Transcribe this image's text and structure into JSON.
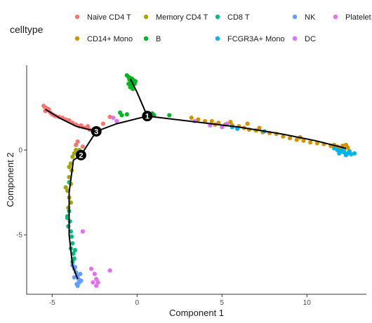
{
  "chart_data": {
    "type": "scatter",
    "xlabel": "Component 1",
    "ylabel": "Component 2",
    "xlim": [
      -6.5,
      13.5
    ],
    "ylim": [
      -8.5,
      5.0
    ],
    "x_ticks": [
      -5,
      0,
      5,
      10
    ],
    "y_ticks": [
      -5,
      0
    ],
    "grid": false,
    "legend": {
      "title": "celltype",
      "placement": "top",
      "entries": [
        {
          "label": "Naive CD4 T",
          "color": "#F8766D"
        },
        {
          "label": "Memory CD4 T",
          "color": "#A3A500"
        },
        {
          "label": "CD8 T",
          "color": "#00BF7D"
        },
        {
          "label": "NK",
          "color": "#619CFF"
        },
        {
          "label": "Platelet",
          "color": "#E76BF3"
        },
        {
          "label": "CD14+ Mono",
          "color": "#D39200"
        },
        {
          "label": "B",
          "color": "#00B81F"
        },
        {
          "label": "FCGR3A+ Mono",
          "color": "#00B4EF"
        },
        {
          "label": "DC",
          "color": "#DB72FB"
        }
      ]
    },
    "trajectory": [
      {
        "x": [
          -5.4,
          -4.5,
          -3.6,
          -3.0,
          -2.4
        ],
        "y": [
          2.4,
          1.85,
          1.4,
          1.25,
          1.1
        ]
      },
      {
        "x": [
          -2.4,
          -1.2,
          0.6
        ],
        "y": [
          1.1,
          1.55,
          2.0
        ]
      },
      {
        "x": [
          0.6,
          0.0,
          -0.4
        ],
        "y": [
          2.0,
          3.4,
          4.2
        ]
      },
      {
        "x": [
          0.6,
          3.5,
          6.0,
          8.5,
          10.5,
          12.3
        ],
        "y": [
          2.0,
          1.65,
          1.35,
          0.95,
          0.55,
          0.1
        ]
      },
      {
        "x": [
          -2.4,
          -3.3
        ],
        "y": [
          1.1,
          -0.3
        ]
      },
      {
        "x": [
          -3.3,
          -3.75,
          -4.0,
          -4.0,
          -3.8,
          -3.5
        ],
        "y": [
          -0.3,
          -0.6,
          -2.5,
          -5.0,
          -6.8,
          -7.6
        ]
      }
    ],
    "branch_points": [
      {
        "label": "1",
        "x": 0.6,
        "y": 2.0
      },
      {
        "label": "2",
        "x": -3.3,
        "y": -0.3
      },
      {
        "label": "3",
        "x": -2.4,
        "y": 1.1
      }
    ],
    "series": [
      {
        "name": "Naive CD4 T",
        "color": "#F8766D",
        "points": [
          [
            -5.5,
            2.6
          ],
          [
            -5.4,
            2.5
          ],
          [
            -5.3,
            2.45
          ],
          [
            -5.4,
            2.3
          ],
          [
            -5.2,
            2.4
          ],
          [
            -5.1,
            2.2
          ],
          [
            -5.0,
            2.1
          ],
          [
            -4.8,
            2.0
          ],
          [
            -4.6,
            1.95
          ],
          [
            -4.4,
            1.9
          ],
          [
            -4.2,
            1.8
          ],
          [
            -4.0,
            1.75
          ],
          [
            -3.8,
            1.6
          ],
          [
            -3.6,
            1.5
          ],
          [
            -3.4,
            1.4
          ],
          [
            -3.2,
            1.35
          ],
          [
            -3.0,
            1.3
          ],
          [
            -2.8,
            1.2
          ],
          [
            -2.6,
            1.1
          ],
          [
            -2.9,
            1.4
          ],
          [
            -3.3,
            1.45
          ],
          [
            -4.9,
            2.05
          ],
          [
            -5.25,
            2.35
          ],
          [
            -1.6,
            1.95
          ],
          [
            -2.0,
            1.55
          ],
          [
            -3.5,
            0.5
          ],
          [
            -3.6,
            0.3
          ],
          [
            -3.2,
            0.2
          ]
        ]
      },
      {
        "name": "Memory CD4 T",
        "color": "#A3A500",
        "points": [
          [
            -3.6,
            0.0
          ],
          [
            -3.5,
            -0.2
          ],
          [
            -3.8,
            -0.4
          ],
          [
            -3.9,
            -0.8
          ],
          [
            -3.85,
            -1.2
          ],
          [
            -4.0,
            -1.6
          ],
          [
            -3.9,
            -2.0
          ],
          [
            -4.1,
            -2.4
          ],
          [
            -4.0,
            -2.8
          ],
          [
            -3.9,
            -3.1
          ],
          [
            -4.2,
            -2.2
          ],
          [
            -4.0,
            -1.0
          ],
          [
            -3.7,
            -0.2
          ],
          [
            -3.4,
            0.0
          ],
          [
            -4.05,
            -3.4
          ]
        ]
      },
      {
        "name": "CD8 T",
        "color": "#00BF7D",
        "points": [
          [
            -4.0,
            -3.6
          ],
          [
            -4.1,
            -3.9
          ],
          [
            -3.95,
            -4.2
          ],
          [
            -4.05,
            -4.5
          ],
          [
            -3.9,
            -4.8
          ],
          [
            -3.85,
            -5.1
          ],
          [
            -3.8,
            -5.5
          ],
          [
            -3.9,
            -5.8
          ],
          [
            -3.75,
            -6.1
          ],
          [
            -3.7,
            -6.4
          ],
          [
            -3.8,
            -6.6
          ],
          [
            -3.65,
            -5.9
          ],
          [
            -4.1,
            -4.0
          ],
          [
            -4.0,
            -1.9
          ]
        ]
      },
      {
        "name": "NK",
        "color": "#619CFF",
        "points": [
          [
            -3.8,
            -6.8
          ],
          [
            -3.7,
            -7.0
          ],
          [
            -3.6,
            -7.2
          ],
          [
            -3.5,
            -7.4
          ],
          [
            -3.45,
            -7.6
          ],
          [
            -3.4,
            -7.8
          ],
          [
            -3.55,
            -7.9
          ],
          [
            -3.7,
            -7.5
          ],
          [
            -3.5,
            -8.0
          ],
          [
            -3.35,
            -7.3
          ],
          [
            -3.65,
            -6.9
          ],
          [
            -3.3,
            -7.7
          ]
        ]
      },
      {
        "name": "Platelet",
        "color": "#E76BF3",
        "points": [
          [
            -3.2,
            -4.8
          ],
          [
            -2.7,
            -7.0
          ],
          [
            -2.5,
            -7.3
          ],
          [
            -2.4,
            -7.6
          ],
          [
            -2.3,
            -7.8
          ],
          [
            -1.6,
            -7.1
          ],
          [
            -2.4,
            -8.0
          ],
          [
            -2.6,
            -7.8
          ]
        ]
      },
      {
        "name": "CD14+ Mono",
        "color": "#D39200",
        "points": [
          [
            3.6,
            1.8
          ],
          [
            4.0,
            1.7
          ],
          [
            4.4,
            1.7
          ],
          [
            4.8,
            1.6
          ],
          [
            5.2,
            1.5
          ],
          [
            5.6,
            1.45
          ],
          [
            6.0,
            1.4
          ],
          [
            6.3,
            1.3
          ],
          [
            6.6,
            1.2
          ],
          [
            7.0,
            1.15
          ],
          [
            7.4,
            1.05
          ],
          [
            7.8,
            1.0
          ],
          [
            8.2,
            0.95
          ],
          [
            8.6,
            0.8
          ],
          [
            9.0,
            0.7
          ],
          [
            9.4,
            0.6
          ],
          [
            9.8,
            0.55
          ],
          [
            10.2,
            0.45
          ],
          [
            10.6,
            0.4
          ],
          [
            11.0,
            0.35
          ],
          [
            11.4,
            0.25
          ],
          [
            11.8,
            0.2
          ],
          [
            12.0,
            0.1
          ],
          [
            12.2,
            0.0
          ],
          [
            12.4,
            0.15
          ],
          [
            12.3,
            0.3
          ],
          [
            5.5,
            1.65
          ],
          [
            6.5,
            1.55
          ],
          [
            3.2,
            1.9
          ],
          [
            4.6,
            1.5
          ],
          [
            7.2,
            1.3
          ],
          [
            9.6,
            0.75
          ],
          [
            11.6,
            0.3
          ],
          [
            12.1,
            0.25
          ],
          [
            12.5,
            -0.05
          ]
        ]
      },
      {
        "name": "B",
        "color": "#00B81F",
        "points": [
          [
            -0.6,
            4.4
          ],
          [
            -0.5,
            4.3
          ],
          [
            -0.4,
            4.25
          ],
          [
            -0.3,
            4.2
          ],
          [
            -0.2,
            4.1
          ],
          [
            -0.35,
            4.0
          ],
          [
            -0.5,
            3.9
          ],
          [
            -0.3,
            3.8
          ],
          [
            -0.15,
            3.9
          ],
          [
            -0.4,
            3.7
          ],
          [
            -0.25,
            3.6
          ],
          [
            -0.45,
            4.15
          ],
          [
            -0.1,
            4.05
          ],
          [
            -1.0,
            2.2
          ],
          [
            -0.9,
            2.05
          ],
          [
            1.0,
            2.05
          ],
          [
            1.9,
            2.05
          ],
          [
            -0.6,
            2.1
          ],
          [
            0.9,
            2.15
          ]
        ]
      },
      {
        "name": "FCGR3A+ Mono",
        "color": "#00B4EF",
        "points": [
          [
            11.6,
            0.1
          ],
          [
            11.8,
            0.0
          ],
          [
            12.0,
            -0.1
          ],
          [
            12.2,
            -0.15
          ],
          [
            12.4,
            -0.2
          ],
          [
            12.6,
            -0.25
          ],
          [
            12.8,
            -0.2
          ],
          [
            11.9,
            -0.2
          ],
          [
            12.1,
            0.0
          ],
          [
            12.3,
            -0.3
          ],
          [
            5.6,
            1.35
          ],
          [
            7.5,
            1.1
          ],
          [
            5.9,
            1.25
          ],
          [
            12.5,
            -0.1
          ]
        ]
      },
      {
        "name": "DC",
        "color": "#DB72FB",
        "points": [
          [
            3.4,
            1.7
          ],
          [
            4.3,
            1.45
          ],
          [
            5.0,
            1.35
          ],
          [
            5.3,
            1.55
          ],
          [
            -1.2,
            1.7
          ],
          [
            -1.4,
            1.9
          ]
        ]
      }
    ]
  }
}
